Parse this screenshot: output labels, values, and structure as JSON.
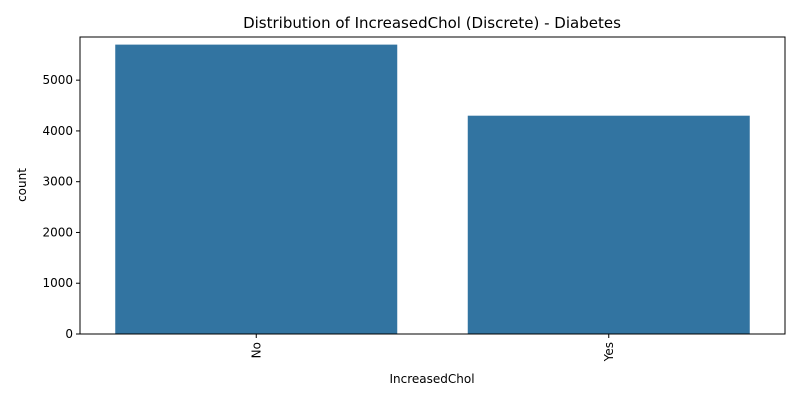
{
  "chart_data": {
    "type": "bar",
    "title": "Distribution of IncreasedChol (Discrete) - Diabetes",
    "xlabel": "IncreasedChol",
    "ylabel": "count",
    "categories": [
      "No",
      "Yes"
    ],
    "values": [
      5700,
      4300
    ],
    "ylim": [
      0,
      5850
    ],
    "yticks": [
      0,
      1000,
      2000,
      3000,
      4000,
      5000
    ],
    "bar_color": "#3274a1",
    "grid": false,
    "legend": "none"
  }
}
